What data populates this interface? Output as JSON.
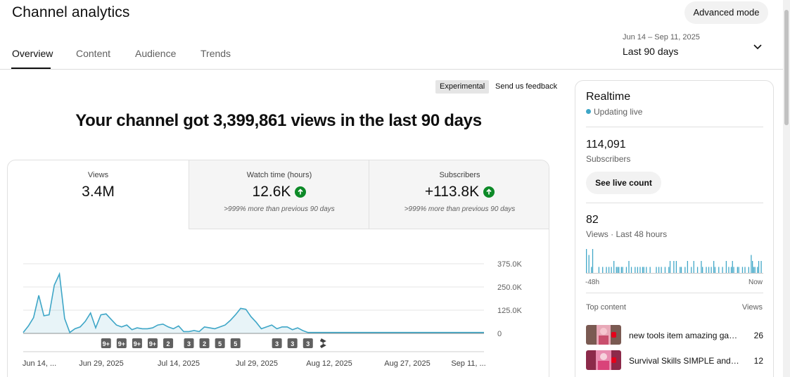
{
  "header": {
    "title": "Channel analytics",
    "advanced_mode_label": "Advanced mode"
  },
  "tabs": [
    {
      "label": "Overview",
      "active": true
    },
    {
      "label": "Content",
      "active": false
    },
    {
      "label": "Audience",
      "active": false
    },
    {
      "label": "Trends",
      "active": false
    }
  ],
  "date_picker": {
    "range": "Jun 14 – Sep 11, 2025",
    "label": "Last 90 days",
    "icon": "chevron-down-icon"
  },
  "experimental": {
    "badge": "Experimental",
    "feedback": "Send us feedback"
  },
  "headline": "Your channel got 3,399,861 views in the last 90 days",
  "metrics": [
    {
      "label": "Views",
      "value": "3.4M",
      "note": ""
    },
    {
      "label": "Watch time (hours)",
      "value": "12.6K",
      "note": ">999% more than previous 90 days",
      "trend": "up"
    },
    {
      "label": "Subscribers",
      "value": "+113.8K",
      "note": ">999% more than previous 90 days",
      "trend": "up"
    }
  ],
  "colors": {
    "accent": "#3ea6c7",
    "up": "#0d8a28",
    "marker": "#606060"
  },
  "chart_data": {
    "type": "area",
    "x_tick_labels": [
      "Jun 14, ...",
      "Jun 29, 2025",
      "Jul 14, 2025",
      "Jul 29, 2025",
      "Aug 12, 2025",
      "Aug 27, 2025",
      "Sep 11, ..."
    ],
    "y_tick_labels": [
      "0",
      "125.0K",
      "250.0K",
      "375.0K"
    ],
    "ylim": [
      0,
      375000
    ],
    "x": [
      0,
      1,
      2,
      3,
      4,
      5,
      6,
      7,
      8,
      9,
      10,
      11,
      12,
      13,
      14,
      15,
      16,
      17,
      18,
      19,
      20,
      21,
      22,
      23,
      24,
      25,
      26,
      27,
      28,
      29,
      30,
      31,
      32,
      33,
      34,
      35,
      36,
      37,
      38,
      39,
      40,
      41,
      42,
      43,
      44,
      45,
      46,
      47,
      48,
      49,
      50,
      51,
      52,
      53,
      54,
      55,
      56,
      57,
      58,
      59,
      60,
      61,
      62,
      63,
      64,
      65,
      66,
      67,
      68,
      69,
      70,
      71,
      72,
      73,
      74,
      75,
      76,
      77,
      78,
      79,
      80,
      81,
      82,
      83,
      84,
      85,
      86,
      87,
      88,
      89
    ],
    "values": [
      5000,
      40000,
      85000,
      205000,
      95000,
      100000,
      260000,
      320000,
      80000,
      5000,
      25000,
      35000,
      65000,
      110000,
      30000,
      100000,
      105000,
      75000,
      45000,
      35000,
      45000,
      20000,
      30000,
      25000,
      25000,
      30000,
      45000,
      50000,
      35000,
      25000,
      40000,
      10000,
      10000,
      15000,
      10000,
      35000,
      30000,
      25000,
      35000,
      45000,
      70000,
      100000,
      135000,
      130000,
      90000,
      60000,
      25000,
      35000,
      45000,
      25000,
      35000,
      35000,
      20000,
      30000,
      15000,
      5000,
      5000,
      5000,
      5000,
      5000,
      5000,
      5000,
      5000,
      5000,
      5000,
      5000,
      5000,
      5000,
      5000,
      5000,
      5000,
      5000,
      5000,
      5000,
      5000,
      5000,
      5000,
      5000,
      5000,
      5000,
      5000,
      5000,
      5000,
      5000,
      5000,
      5000,
      5000,
      5000,
      5000,
      5000
    ],
    "markers": [
      {
        "label": "9+",
        "x": 16
      },
      {
        "label": "9+",
        "x": 19
      },
      {
        "label": "9+",
        "x": 22
      },
      {
        "label": "9+",
        "x": 25
      },
      {
        "label": "2",
        "x": 28
      },
      {
        "label": "3",
        "x": 32
      },
      {
        "label": "2",
        "x": 35
      },
      {
        "label": "5",
        "x": 38
      },
      {
        "label": "5",
        "x": 41
      },
      {
        "label": "3",
        "x": 49
      },
      {
        "label": "3",
        "x": 52
      },
      {
        "label": "3",
        "x": 55
      },
      {
        "label": "",
        "x": 58,
        "icon": "shorts-icon"
      }
    ]
  },
  "realtime": {
    "title": "Realtime",
    "status": "Updating live",
    "subscribers": "114,091",
    "subscribers_label": "Subscribers",
    "live_count_button": "See live count",
    "views": "82",
    "views_label": "Views · Last 48 hours",
    "axis_start": "-48h",
    "axis_end": "Now",
    "bar_values": [
      4,
      0,
      3,
      0,
      1,
      4,
      0,
      0,
      0,
      0,
      1,
      0,
      0,
      1,
      0,
      0,
      1,
      0,
      1,
      0,
      1,
      0,
      2,
      0,
      1,
      1,
      1,
      0,
      1,
      1,
      0,
      0,
      1,
      0,
      2,
      0,
      1,
      0,
      0,
      1,
      0,
      1,
      0,
      1,
      0,
      1,
      1,
      0,
      1,
      0,
      0,
      1,
      0,
      0,
      0,
      0,
      1,
      0,
      1,
      0,
      1,
      0,
      0,
      1,
      0,
      0,
      1,
      2,
      0,
      0,
      2,
      0,
      2,
      0,
      0,
      1,
      1,
      0,
      0,
      1,
      0,
      2,
      0,
      0,
      1,
      0,
      2,
      0,
      0,
      1,
      0,
      0,
      2,
      1,
      0,
      0,
      1,
      0,
      1,
      0,
      1,
      0,
      2,
      1,
      0,
      0,
      1,
      0,
      0,
      1,
      0,
      0,
      2,
      0,
      1,
      0,
      1,
      2,
      1,
      0,
      0,
      1,
      1,
      0,
      0,
      1,
      0,
      1,
      0,
      0,
      1,
      0,
      3,
      2,
      1,
      1,
      0,
      1,
      2,
      0,
      2,
      0
    ],
    "top_content_label": "Top content",
    "top_views_label": "Views",
    "top_content": [
      {
        "title": "new tools item amazing gad...",
        "views": "26",
        "thumb": "pink-video-thumbnail"
      },
      {
        "title": "Survival Skills SIMPLE and U...",
        "views": "12",
        "thumb": "pink-video-thumbnail"
      }
    ]
  }
}
